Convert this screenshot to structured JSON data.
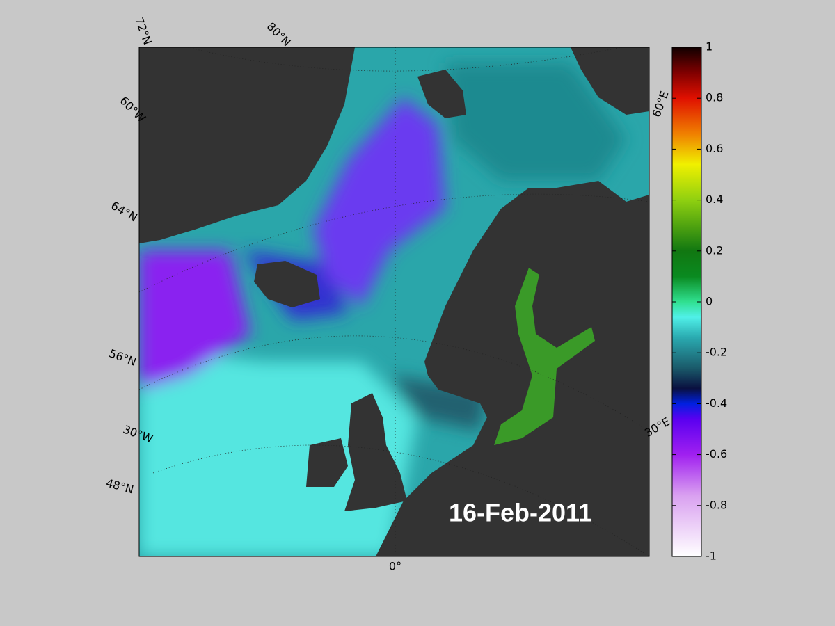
{
  "map": {
    "labels": [
      "72°N",
      "80°N",
      "60°W",
      "64°N",
      "56°N",
      "30°W",
      "48°N",
      "0°",
      "60°E",
      "30°E"
    ],
    "date": "16-Feb-2011"
  },
  "colorbar": {
    "lim": [
      -1,
      1
    ],
    "ticks": [
      1,
      0.8,
      0.6,
      0.4,
      0.2,
      0,
      -0.2,
      -0.4,
      -0.6,
      -0.8,
      -1
    ]
  }
}
